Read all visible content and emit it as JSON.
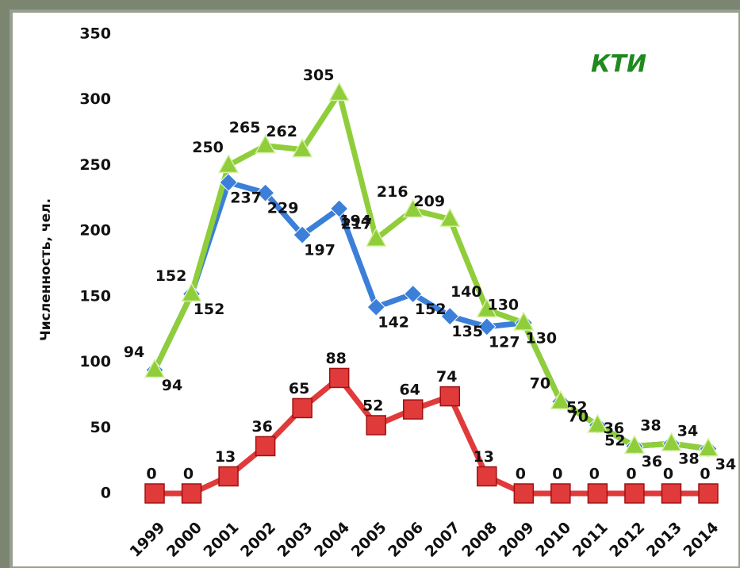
{
  "chart_data": {
    "type": "line",
    "title": "КТИ",
    "y_label": "Численность, чел.",
    "categories": [
      "1999",
      "2000",
      "2001",
      "2002",
      "2003",
      "2004",
      "2005",
      "2006",
      "2007",
      "2008",
      "2009",
      "2010",
      "2011",
      "2012",
      "2013",
      "2014"
    ],
    "series": [
      {
        "color": "#3b7fd9",
        "marker": "diamond",
        "values": [
          94,
          152,
          237,
          229,
          197,
          217,
          142,
          152,
          135,
          127,
          130,
          70,
          52,
          36,
          38,
          34
        ]
      },
      {
        "color": "#8fce3a",
        "marker": "triangle",
        "values": [
          94,
          152,
          250,
          265,
          262,
          305,
          194,
          216,
          209,
          140,
          130,
          70,
          52,
          36,
          38,
          34
        ]
      },
      {
        "color": "#e03a3a",
        "marker": "square",
        "values": [
          0,
          0,
          13,
          36,
          65,
          88,
          52,
          64,
          74,
          13,
          0,
          0,
          0,
          0,
          0,
          0
        ]
      }
    ],
    "ylim": [
      0,
      350
    ],
    "yticks": [
      0,
      50,
      100,
      150,
      200,
      250,
      300,
      350
    ],
    "grid": false
  }
}
